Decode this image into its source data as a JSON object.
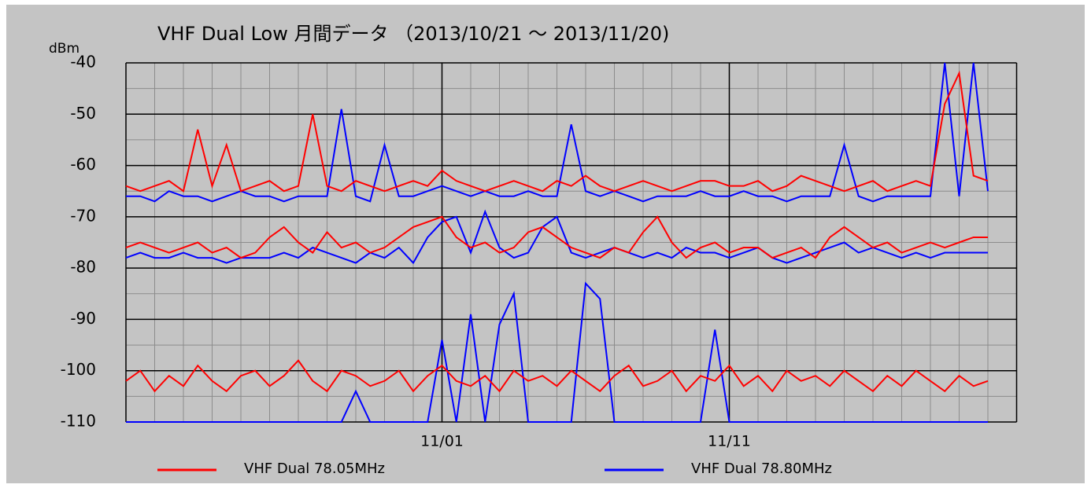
{
  "chart_data": {
    "type": "line",
    "title": "VHF Dual Low 月間データ （2013/10/21 ～ 2013/11/20)",
    "y_label": "dBm",
    "xlim": [
      0,
      31
    ],
    "xticks": [
      {
        "value": 11,
        "label": "11/01"
      },
      {
        "value": 21,
        "label": "11/11"
      }
    ],
    "ylim": [
      -110,
      -40
    ],
    "yticks": [
      -40,
      -50,
      -60,
      -70,
      -80,
      -90,
      -100,
      -110
    ],
    "grid": true,
    "legend": "bottom",
    "x": [
      0,
      0.5,
      1,
      1.5,
      2,
      2.5,
      3,
      3.5,
      4,
      4.5,
      5,
      5.5,
      6,
      6.5,
      7,
      7.5,
      8,
      8.5,
      9,
      9.5,
      10,
      10.5,
      11,
      11.5,
      12,
      12.5,
      13,
      13.5,
      14,
      14.5,
      15,
      15.5,
      16,
      16.5,
      17,
      17.5,
      18,
      18.5,
      19,
      19.5,
      20,
      20.5,
      21,
      21.5,
      22,
      22.5,
      23,
      23.5,
      24,
      24.5,
      25,
      25.5,
      26,
      26.5,
      27,
      27.5,
      28,
      28.5,
      29,
      29.5,
      30
    ],
    "series": [
      {
        "name": "VHF Dual 78.05MHz",
        "color": "#ff0000",
        "traces": [
          [
            -64,
            -65,
            -64,
            -63,
            -65,
            -53,
            -64,
            -56,
            -65,
            -64,
            -63,
            -65,
            -64,
            -50,
            -64,
            -65,
            -63,
            -64,
            -65,
            -64,
            -63,
            -64,
            -61,
            -63,
            -64,
            -65,
            -64,
            -63,
            -64,
            -65,
            -63,
            -64,
            -62,
            -64,
            -65,
            -64,
            -63,
            -64,
            -65,
            -64,
            -63,
            -63,
            -64,
            -64,
            -63,
            -65,
            -64,
            -62,
            -63,
            -64,
            -65,
            -64,
            -63,
            -65,
            -64,
            -63,
            -64,
            -48,
            -42,
            -62,
            -63
          ],
          [
            -76,
            -75,
            -76,
            -77,
            -76,
            -75,
            -77,
            -76,
            -78,
            -77,
            -74,
            -72,
            -75,
            -77,
            -73,
            -76,
            -75,
            -77,
            -76,
            -74,
            -72,
            -71,
            -70,
            -74,
            -76,
            -75,
            -77,
            -76,
            -73,
            -72,
            -74,
            -76,
            -77,
            -78,
            -76,
            -77,
            -73,
            -70,
            -75,
            -78,
            -76,
            -75,
            -77,
            -76,
            -76,
            -78,
            -77,
            -76,
            -78,
            -74,
            -72,
            -74,
            -76,
            -75,
            -77,
            -76,
            -75,
            -76,
            -75,
            -74,
            -74
          ],
          [
            -102,
            -100,
            -104,
            -101,
            -103,
            -99,
            -102,
            -104,
            -101,
            -100,
            -103,
            -101,
            -98,
            -102,
            -104,
            -100,
            -101,
            -103,
            -102,
            -100,
            -104,
            -101,
            -99,
            -102,
            -103,
            -101,
            -104,
            -100,
            -102,
            -101,
            -103,
            -100,
            -102,
            -104,
            -101,
            -99,
            -103,
            -102,
            -100,
            -104,
            -101,
            -102,
            -99,
            -103,
            -101,
            -104,
            -100,
            -102,
            -101,
            -103,
            -100,
            -102,
            -104,
            -101,
            -103,
            -100,
            -102,
            -104,
            -101,
            -103,
            -102
          ]
        ]
      },
      {
        "name": "VHF Dual 78.80MHz",
        "color": "#0000ff",
        "traces": [
          [
            -66,
            -66,
            -67,
            -65,
            -66,
            -66,
            -67,
            -66,
            -65,
            -66,
            -66,
            -67,
            -66,
            -66,
            -66,
            -49,
            -66,
            -67,
            -56,
            -66,
            -66,
            -65,
            -64,
            -65,
            -66,
            -65,
            -66,
            -66,
            -65,
            -66,
            -66,
            -52,
            -65,
            -66,
            -65,
            -66,
            -67,
            -66,
            -66,
            -66,
            -65,
            -66,
            -66,
            -65,
            -66,
            -66,
            -67,
            -66,
            -66,
            -66,
            -56,
            -66,
            -67,
            -66,
            -66,
            -66,
            -66,
            -40,
            -66,
            -40,
            -65
          ],
          [
            -78,
            -77,
            -78,
            -78,
            -77,
            -78,
            -78,
            -79,
            -78,
            -78,
            -78,
            -77,
            -78,
            -76,
            -77,
            -78,
            -79,
            -77,
            -78,
            -76,
            -79,
            -74,
            -71,
            -70,
            -77,
            -69,
            -76,
            -78,
            -77,
            -72,
            -70,
            -77,
            -78,
            -77,
            -76,
            -77,
            -78,
            -77,
            -78,
            -76,
            -77,
            -77,
            -78,
            -77,
            -76,
            -78,
            -79,
            -78,
            -77,
            -76,
            -75,
            -77,
            -76,
            -77,
            -78,
            -77,
            -78,
            -77,
            -77,
            -77,
            -77
          ],
          [
            -110,
            -110,
            -110,
            -110,
            -110,
            -110,
            -110,
            -110,
            -110,
            -110,
            -110,
            -110,
            -110,
            -110,
            -110,
            -110,
            -104,
            -110,
            -110,
            -110,
            -110,
            -110,
            -94,
            -110,
            -89,
            -110,
            -91,
            -85,
            -110,
            -110,
            -110,
            -110,
            -83,
            -86,
            -110,
            -110,
            -110,
            -110,
            -110,
            -110,
            -110,
            -92,
            -110,
            -110,
            -110,
            -110,
            -110,
            -110,
            -110,
            -110,
            -110,
            -110,
            -110,
            -110,
            -110,
            -110,
            -110,
            -110,
            -110,
            -110,
            -110
          ]
        ]
      }
    ]
  }
}
